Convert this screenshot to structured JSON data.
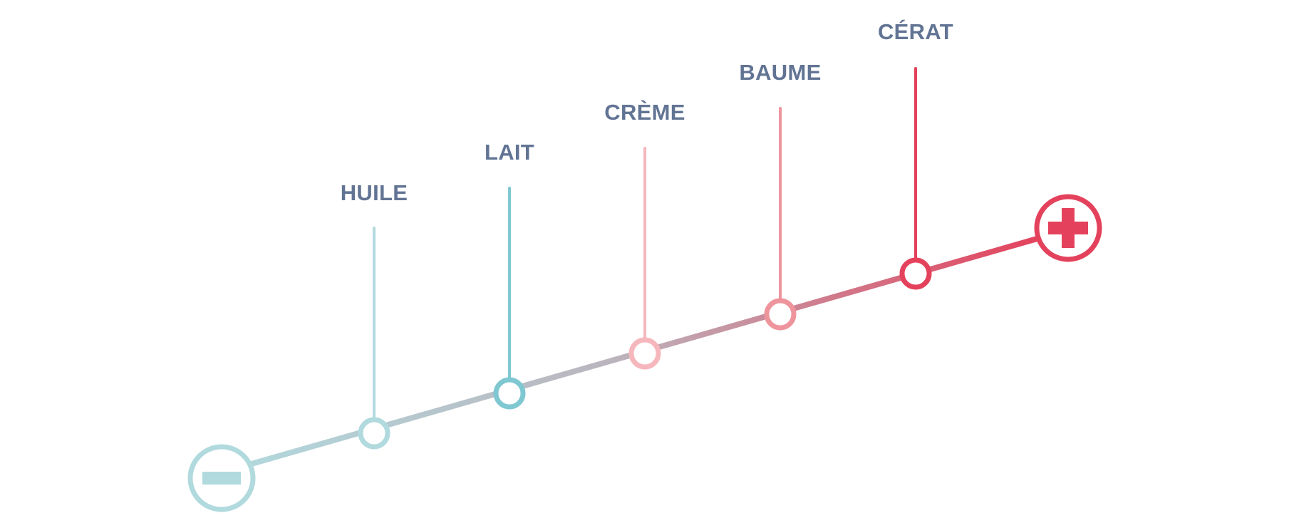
{
  "scale": {
    "low_end_icon": "minus-icon",
    "high_end_icon": "plus-icon",
    "steps": [
      {
        "label": "HUILE",
        "color": "#B1DADE"
      },
      {
        "label": "LAIT",
        "color": "#7FC8D2"
      },
      {
        "label": "CRÈME",
        "color": "#F6B7BC"
      },
      {
        "label": "BAUME",
        "color": "#EE949D"
      },
      {
        "label": "CÉRAT",
        "color": "#E4425C"
      }
    ]
  },
  "colors": {
    "label_text": "#627494",
    "low_end": "#B1DADE",
    "high_end": "#E4425C",
    "line_mid": "#BBB4BD"
  }
}
